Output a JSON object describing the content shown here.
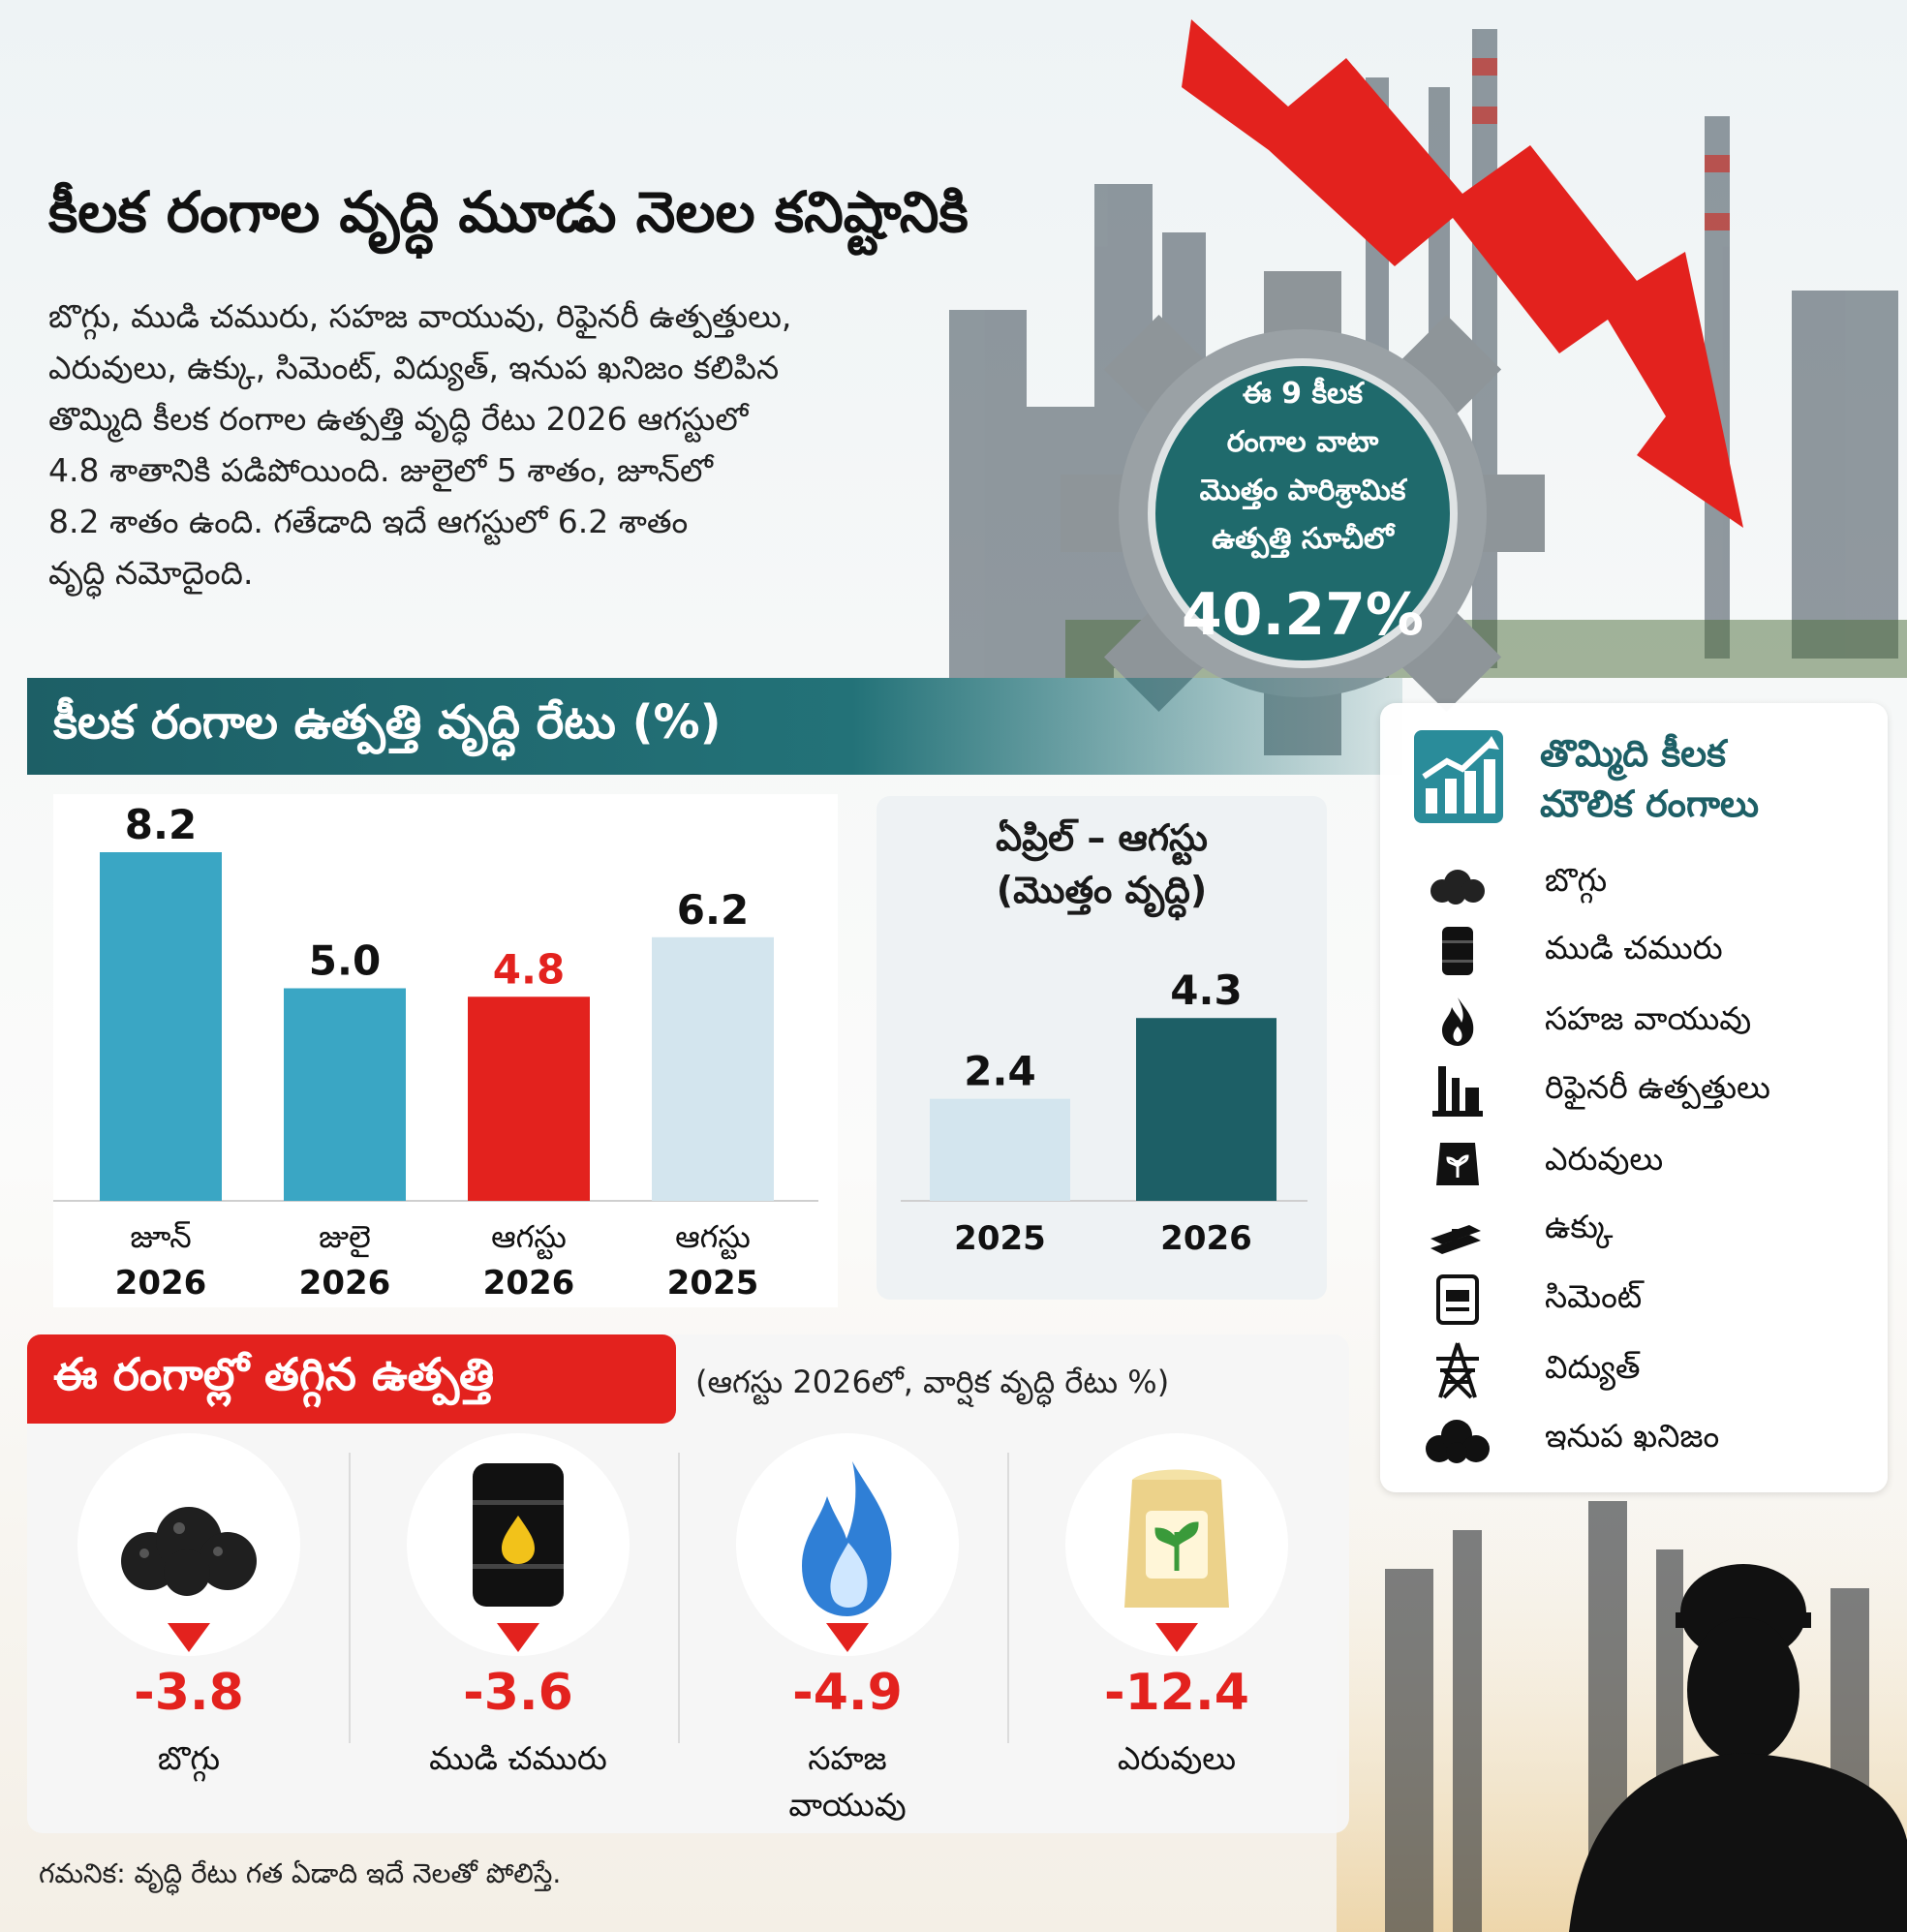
{
  "headline": "కీలక రంగాల వృద్ధి మూడు నెలల కనిష్టానికి",
  "intro_lines": [
    "బొగ్గు, ముడి చమురు, సహజ వాయువు, రిఫైనరీ ఉత్పత్తులు,",
    "ఎరువులు, ఉక్కు, సిమెంట్, విద్యుత్, ఇనుప ఖనిజం కలిపిన",
    "తొమ్మిది కీలక రంగాల ఉత్పత్తి వృద్ధి రేటు 2026 ఆగస్టులో",
    "4.8 శాతానికి పడిపోయింది. జులైలో 5 శాతం, జూన్‌లో",
    "8.2 శాతం ఉంది. గతేడాది ఇదే ఆగస్టులో 6.2 శాతం",
    "వృద్ధి నమోదైంది."
  ],
  "gear": {
    "lines": [
      "ఈ 9 కీలక",
      "రంగాల వాటా",
      "మొత్తం పారిశ్రామిక",
      "ఉత్పత్తి సూచీలో"
    ],
    "value": "40.27%"
  },
  "growth_section_title": "కీలక రంగాల ఉత్పత్తి వృద్ధి రేటు (%)",
  "chart_data": [
    {
      "type": "bar",
      "categories": [
        [
          "జూన్",
          "2026"
        ],
        [
          "జులై",
          "2026"
        ],
        [
          "ఆగస్టు",
          "2026"
        ],
        [
          "ఆగస్టు",
          "2025"
        ]
      ],
      "values": [
        8.2,
        5.0,
        4.8,
        6.2
      ],
      "value_labels": [
        "8.2",
        "5.0",
        "4.8",
        "6.2"
      ],
      "colors": [
        "#3aa6c4",
        "#3aa6c4",
        "#e3221e",
        "#d3e5ee"
      ],
      "label_colors": [
        "#111111",
        "#111111",
        "#e3221e",
        "#111111"
      ],
      "ylim": [
        0,
        8.2
      ],
      "grid": false
    },
    {
      "type": "bar",
      "title_lines": [
        "ఏప్రిల్ – ఆగస్టు",
        "(మొత్తం వృద్ధి)"
      ],
      "categories": [
        "2025",
        "2026"
      ],
      "values": [
        2.4,
        4.3
      ],
      "value_labels": [
        "2.4",
        "4.3"
      ],
      "colors": [
        "#d3e5ee",
        "#1d5f66"
      ],
      "ylim": [
        0,
        8.2
      ],
      "grid": false
    }
  ],
  "legend": {
    "title_lines": [
      "తొమ్మిది కీలక",
      "మౌలిక రంగాలు"
    ],
    "items": [
      {
        "label": "బొగ్గు",
        "icon": "coal-icon"
      },
      {
        "label": "ముడి చమురు",
        "icon": "oil-barrel-icon"
      },
      {
        "label": "సహజ వాయువు",
        "icon": "flame-icon"
      },
      {
        "label": "రిఫైనరీ ఉత్పత్తులు",
        "icon": "refinery-icon"
      },
      {
        "label": "ఎరువులు",
        "icon": "fertilizer-bag-icon"
      },
      {
        "label": "ఉక్కు",
        "icon": "steel-beam-icon"
      },
      {
        "label": "సిమెంట్",
        "icon": "cement-bag-icon"
      },
      {
        "label": "విద్యుత్",
        "icon": "power-tower-icon"
      },
      {
        "label": "ఇనుప ఖనిజం",
        "icon": "iron-ore-icon"
      }
    ]
  },
  "decline": {
    "title": "ఈ రంగాల్లో తగ్గిన ఉత్పత్తి",
    "subtitle": "(ఆగస్టు 2026లో, వార్షిక వృద్ధి రేటు %)",
    "items": [
      {
        "value": "-3.8",
        "label_lines": [
          "బొగ్గు"
        ],
        "icon": "coal-icon"
      },
      {
        "value": "-3.6",
        "label_lines": [
          "ముడి చమురు"
        ],
        "icon": "oil-barrel-icon"
      },
      {
        "value": "-4.9",
        "label_lines": [
          "సహజ",
          "వాయువు"
        ],
        "icon": "gas-flame-icon"
      },
      {
        "value": "-12.4",
        "label_lines": [
          "ఎరువులు"
        ],
        "icon": "fertilizer-bag-icon"
      }
    ]
  },
  "footnote": "గమనిక:  వృద్ధి రేటు గత ఏడాది ఇదే నెలతో పోలిస్తే.",
  "colors": {
    "teal": "#1d5f66",
    "red": "#e3221e",
    "light_blue": "#3aa6c4",
    "pale_blue": "#d3e5ee"
  }
}
